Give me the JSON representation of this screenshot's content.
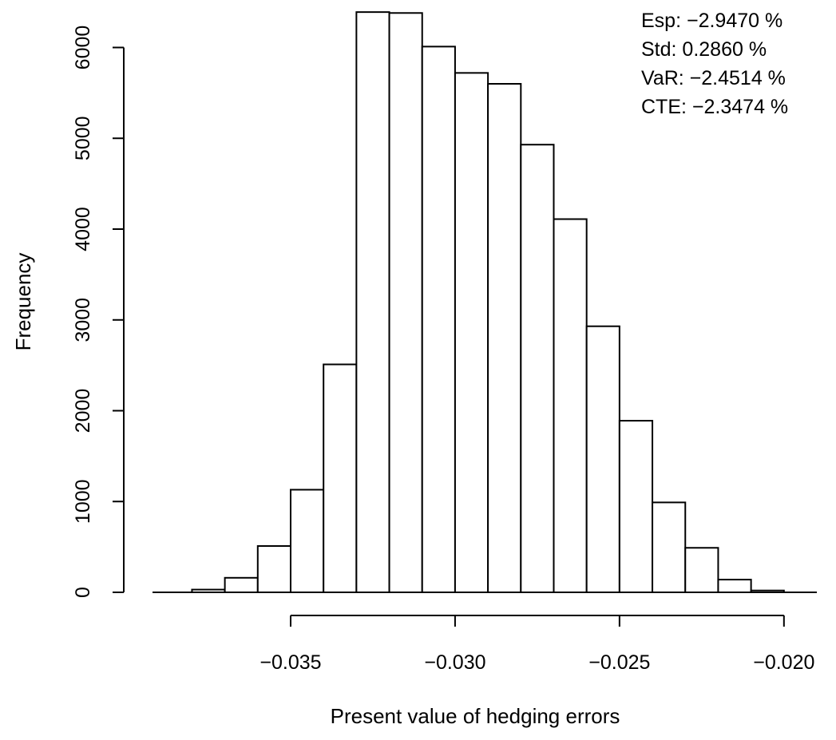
{
  "chart_data": {
    "type": "bar",
    "xlabel": "Present value of hedging errors",
    "ylabel": "Frequency",
    "bin_edges": [
      -0.038,
      -0.037,
      -0.036,
      -0.035,
      -0.034,
      -0.033,
      -0.032,
      -0.031,
      -0.03,
      -0.029,
      -0.028,
      -0.027,
      -0.026,
      -0.025,
      -0.024,
      -0.023,
      -0.022,
      -0.021,
      -0.02
    ],
    "values": [
      30,
      160,
      510,
      1130,
      2510,
      6390,
      6380,
      6010,
      5720,
      5600,
      4930,
      4110,
      2930,
      1890,
      990,
      490,
      140,
      20
    ],
    "xlim": [
      -0.0392,
      -0.019
    ],
    "ylim": [
      0,
      6400
    ],
    "xticks": [
      -0.035,
      -0.03,
      -0.025,
      -0.02
    ],
    "xtick_labels": [
      "−0.035",
      "−0.030",
      "−0.025",
      "−0.020"
    ],
    "yticks": [
      0,
      1000,
      2000,
      3000,
      4000,
      5000,
      6000
    ],
    "ytick_labels": [
      "0",
      "1000",
      "2000",
      "3000",
      "4000",
      "5000",
      "6000"
    ],
    "legend_position": "top-right",
    "stats": [
      {
        "label": "Esp:",
        "value": "−2.9470 %"
      },
      {
        "label": "Std:",
        "value": "0.2860 %"
      },
      {
        "label": "VaR:",
        "value": "−2.4514 %"
      },
      {
        "label": "CTE:",
        "value": "−2.3474 %"
      }
    ],
    "colors": {
      "bar_fill": "#ffffff",
      "bar_stroke": "#000000"
    }
  }
}
